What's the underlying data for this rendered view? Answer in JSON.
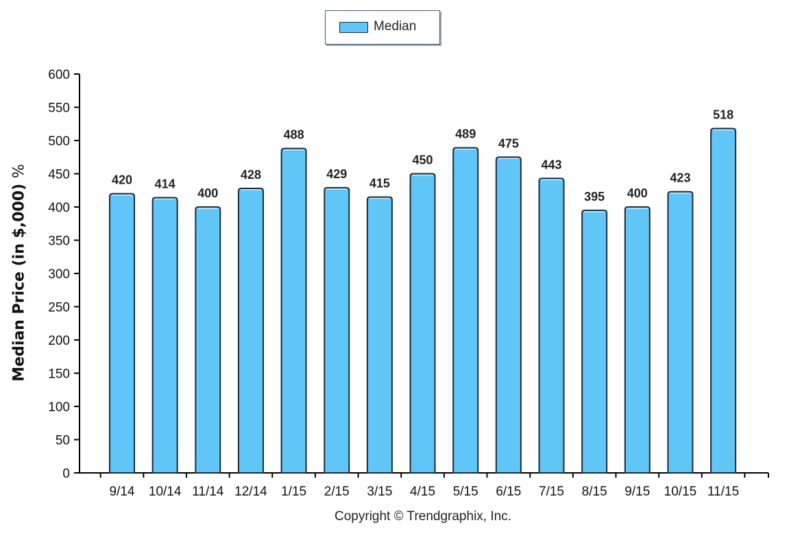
{
  "chart_data": {
    "type": "bar",
    "categories": [
      "9/14",
      "10/14",
      "11/14",
      "12/14",
      "1/15",
      "2/15",
      "3/15",
      "4/15",
      "5/15",
      "6/15",
      "7/15",
      "8/15",
      "9/15",
      "10/15",
      "11/15"
    ],
    "series": [
      {
        "name": "Median",
        "values": [
          420,
          414,
          400,
          428,
          488,
          429,
          415,
          450,
          489,
          475,
          443,
          395,
          400,
          423,
          518
        ]
      }
    ],
    "data_labels": [
      "420",
      "414",
      "400",
      "428",
      "488",
      "429",
      "415",
      "450",
      "489",
      "475",
      "443",
      "395",
      "400",
      "423",
      "518"
    ],
    "ylabel": "Median Price (in $,000)",
    "ylabel_unit": "%",
    "ylim": [
      0,
      600
    ],
    "yticks": [
      0,
      50,
      100,
      150,
      200,
      250,
      300,
      350,
      400,
      450,
      500,
      550,
      600
    ],
    "ytick_labels": [
      "0",
      "50",
      "100",
      "150",
      "200",
      "250",
      "300",
      "350",
      "400",
      "450",
      "500",
      "550",
      "600"
    ],
    "grid": false,
    "legend": "top-center",
    "copyright": "Copyright © Trendgraphix, Inc.",
    "colors": {
      "bar": "#5fc6f7",
      "bar_edge": "#1d2a3a",
      "axis": "#000000"
    }
  }
}
